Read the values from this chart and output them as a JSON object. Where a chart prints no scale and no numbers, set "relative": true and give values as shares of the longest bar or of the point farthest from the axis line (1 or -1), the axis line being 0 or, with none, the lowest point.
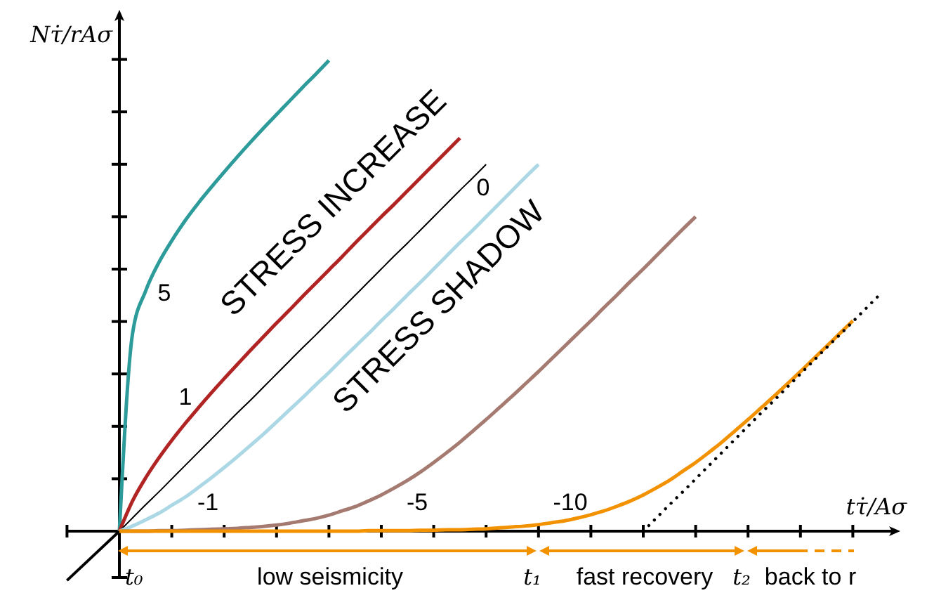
{
  "chart_data": {
    "type": "line",
    "relative": true,
    "xlabel": "tτ̇/Aσ",
    "ylabel": "Nτ̇/rAσ",
    "categories": [
      null,
      null,
      null,
      null,
      null,
      null,
      null,
      null,
      null,
      null,
      null,
      null,
      null,
      null,
      null,
      null,
      null,
      null,
      null,
      null,
      null,
      null,
      null,
      null,
      null,
      null,
      null,
      null,
      null,
      null,
      null,
      null,
      null,
      null,
      null,
      null,
      null,
      null,
      null,
      null,
      null,
      null,
      null,
      null,
      null,
      null,
      null,
      null,
      null,
      null,
      null,
      null,
      null,
      null,
      null,
      null,
      null,
      null,
      null
    ],
    "series": [
      {
        "name": "5",
        "color": "#2e9b9b",
        "values": [
          0,
          0.419,
          0.51,
          0.57,
          0.617,
          0.659,
          0.696,
          0.73,
          0.763,
          0.795,
          0.826,
          0.856,
          0.885,
          0.914,
          0.943,
          0.971,
          1,
          null,
          null,
          null,
          null,
          null,
          null,
          null,
          null,
          null,
          null,
          null,
          null,
          null,
          null,
          null,
          null,
          null,
          null,
          null,
          null,
          null,
          null,
          null,
          null,
          null,
          null,
          null,
          null,
          null,
          null,
          null,
          null,
          null,
          null,
          null,
          null,
          null,
          null,
          null,
          null,
          null,
          null
        ]
      },
      {
        "name": "1",
        "color": "#b02424",
        "values": [
          0,
          0.064,
          0.113,
          0.155,
          0.193,
          0.228,
          0.261,
          0.293,
          0.324,
          0.354,
          0.384,
          0.413,
          0.442,
          0.47,
          0.499,
          0.527,
          0.555,
          0.583,
          0.612,
          0.64,
          0.668,
          0.695,
          0.723,
          0.751,
          0.779,
          0.807,
          0.835,
          null,
          null,
          null,
          null,
          null,
          null,
          null,
          null,
          null,
          null,
          null,
          null,
          null,
          null,
          null,
          null,
          null,
          null,
          null,
          null,
          null,
          null,
          null,
          null,
          null,
          null,
          null,
          null,
          null,
          null,
          null,
          null
        ]
      },
      {
        "name": "0",
        "color": "#000000",
        "values": [
          0,
          0.028,
          0.056,
          0.083,
          0.111,
          0.139,
          0.167,
          0.195,
          0.223,
          0.251,
          0.278,
          0.306,
          0.334,
          0.362,
          0.39,
          0.417,
          0.445,
          0.473,
          0.501,
          0.529,
          0.557,
          0.585,
          0.612,
          0.64,
          0.668,
          0.696,
          0.724,
          0.751,
          0.779,
          null,
          null,
          null,
          null,
          null,
          null,
          null,
          null,
          null,
          null,
          null,
          null,
          null,
          null,
          null,
          null,
          null,
          null,
          null,
          null,
          null,
          null,
          null,
          null,
          null,
          null,
          null,
          null,
          null,
          null
        ]
      },
      {
        "name": "-1",
        "color": "#acd8e6",
        "values": [
          0,
          0.011,
          0.024,
          0.038,
          0.055,
          0.072,
          0.092,
          0.113,
          0.135,
          0.158,
          0.182,
          0.206,
          0.232,
          0.258,
          0.284,
          0.311,
          0.337,
          0.365,
          0.392,
          0.419,
          0.447,
          0.474,
          0.502,
          0.529,
          0.557,
          0.585,
          0.613,
          0.64,
          0.668,
          0.696,
          0.724,
          0.752,
          0.779,
          null,
          null,
          null,
          null,
          null,
          null,
          null,
          null,
          null,
          null,
          null,
          null,
          null,
          null,
          null,
          null,
          null,
          null,
          null,
          null,
          null,
          null,
          null,
          null,
          null,
          null
        ]
      },
      {
        "name": "-5",
        "color": "#a57a70",
        "values": [
          0,
          0,
          0,
          0.001,
          0.001,
          0.002,
          0.003,
          0.004,
          0.005,
          0.006,
          0.008,
          0.01,
          0.013,
          0.017,
          0.022,
          0.027,
          0.034,
          0.043,
          0.052,
          0.064,
          0.077,
          0.092,
          0.108,
          0.126,
          0.146,
          0.167,
          0.189,
          0.213,
          0.237,
          0.262,
          0.287,
          0.313,
          0.339,
          0.366,
          0.393,
          0.42,
          0.447,
          0.475,
          0.502,
          0.53,
          0.557,
          0.585,
          0.613,
          0.641,
          0.668,
          null,
          null,
          null,
          null,
          null,
          null,
          null,
          null,
          null,
          null,
          null,
          null,
          null,
          null
        ]
      },
      {
        "name": "-10",
        "color": "#f39200",
        "values": [
          0,
          0,
          0,
          0,
          0,
          0,
          0,
          0,
          0,
          0,
          0,
          0,
          0,
          0,
          0,
          0,
          0,
          0,
          0,
          0.001,
          0.001,
          0.001,
          0.001,
          0.002,
          0.002,
          0.003,
          0.003,
          0.004,
          0.005,
          0.007,
          0.009,
          0.011,
          0.014,
          0.018,
          0.022,
          0.028,
          0.035,
          0.043,
          0.053,
          0.064,
          0.077,
          0.092,
          0.108,
          0.127,
          0.146,
          0.167,
          0.189,
          0.213,
          0.237,
          0.262,
          0.287,
          0.313,
          0.339,
          0.366,
          0.393,
          0.42,
          0.447,
          null,
          null
        ]
      },
      {
        "color": "#000000",
        "line_style": "dotted",
        "values": [
          null,
          null,
          null,
          null,
          null,
          null,
          null,
          null,
          null,
          null,
          null,
          null,
          null,
          null,
          null,
          null,
          null,
          null,
          null,
          null,
          null,
          null,
          null,
          null,
          null,
          null,
          null,
          null,
          null,
          null,
          null,
          null,
          null,
          null,
          null,
          null,
          null,
          null,
          null,
          null,
          0,
          0.028,
          0.056,
          0.083,
          0.111,
          0.139,
          0.167,
          0.195,
          0.223,
          0.251,
          0.278,
          0.306,
          0.334,
          0.362,
          0.39,
          0.417,
          0.445,
          0.473,
          0.501
        ]
      }
    ],
    "annotations": [
      "STRESS INCREASE",
      "STRESS SHADOW",
      "t₀",
      "low seismicity",
      "t₁",
      "fast recovery",
      "t₂",
      "back to r"
    ]
  }
}
